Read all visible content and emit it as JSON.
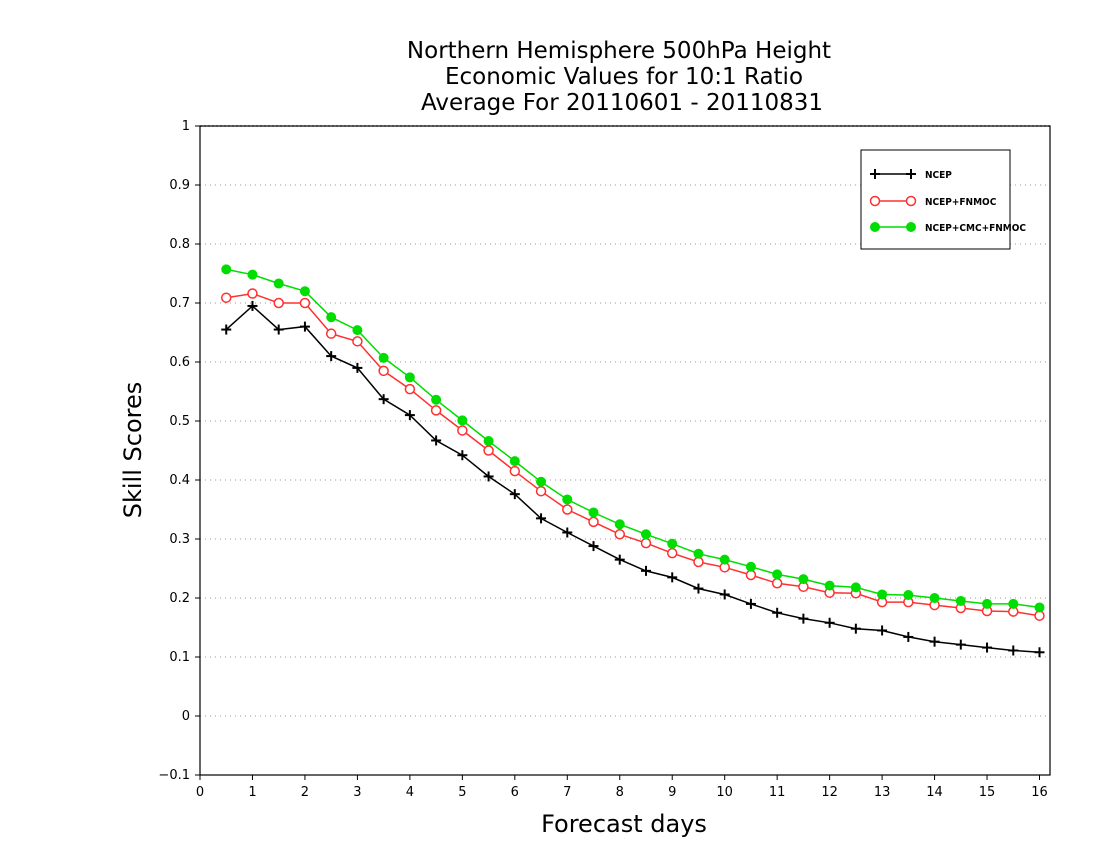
{
  "chart_data": {
    "type": "line",
    "title": [
      "Northern Hemisphere 500hPa Height",
      "Economic Values for 10:1 Ratio",
      "Average For 20110601 - 20110831"
    ],
    "xlabel": "Forecast days",
    "ylabel": "Skill Scores",
    "xlim": [
      0,
      16.2
    ],
    "ylim": [
      -0.1,
      1
    ],
    "xticks": [
      "0",
      "1",
      "2",
      "3",
      "4",
      "5",
      "6",
      "7",
      "8",
      "9",
      "10",
      "11",
      "12",
      "13",
      "14",
      "15",
      "16"
    ],
    "yticks": [
      "−0.1",
      "0",
      "0.1",
      "0.2",
      "0.3",
      "0.4",
      "0.5",
      "0.6",
      "0.7",
      "0.8",
      "0.9",
      "1"
    ],
    "grid": true,
    "legend_position": "top-right",
    "x": [
      0.5,
      1,
      1.5,
      2,
      2.5,
      3,
      3.5,
      4,
      4.5,
      5,
      5.5,
      6,
      6.5,
      7,
      7.5,
      8,
      8.5,
      9,
      9.5,
      10,
      10.5,
      11,
      11.5,
      12,
      12.5,
      13,
      13.5,
      14,
      14.5,
      15,
      15.5,
      16
    ],
    "series": [
      {
        "name": "NCEP",
        "color": "#000000",
        "marker": "plus",
        "values": [
          0.655,
          0.695,
          0.655,
          0.66,
          0.61,
          0.59,
          0.537,
          0.51,
          0.467,
          0.442,
          0.406,
          0.376,
          0.335,
          0.311,
          0.288,
          0.265,
          0.246,
          0.235,
          0.216,
          0.206,
          0.19,
          0.175,
          0.165,
          0.158,
          0.148,
          0.145,
          0.134,
          0.126,
          0.121,
          0.116,
          0.111,
          0.108
        ]
      },
      {
        "name": "NCEP+FNMOC",
        "color": "#ff3030",
        "marker": "open-circle",
        "values": [
          0.709,
          0.716,
          0.7,
          0.7,
          0.648,
          0.635,
          0.585,
          0.554,
          0.518,
          0.484,
          0.45,
          0.415,
          0.381,
          0.35,
          0.329,
          0.308,
          0.293,
          0.276,
          0.261,
          0.252,
          0.239,
          0.225,
          0.219,
          0.209,
          0.208,
          0.193,
          0.193,
          0.188,
          0.183,
          0.178,
          0.177,
          0.17
        ]
      },
      {
        "name": "NCEP+CMC+FNMOC",
        "color": "#00dd00",
        "marker": "filled-circle",
        "values": [
          0.757,
          0.748,
          0.733,
          0.72,
          0.676,
          0.654,
          0.607,
          0.574,
          0.536,
          0.501,
          0.466,
          0.432,
          0.397,
          0.367,
          0.345,
          0.325,
          0.308,
          0.292,
          0.275,
          0.265,
          0.253,
          0.24,
          0.232,
          0.221,
          0.218,
          0.206,
          0.205,
          0.2,
          0.195,
          0.19,
          0.19,
          0.184
        ]
      }
    ]
  }
}
